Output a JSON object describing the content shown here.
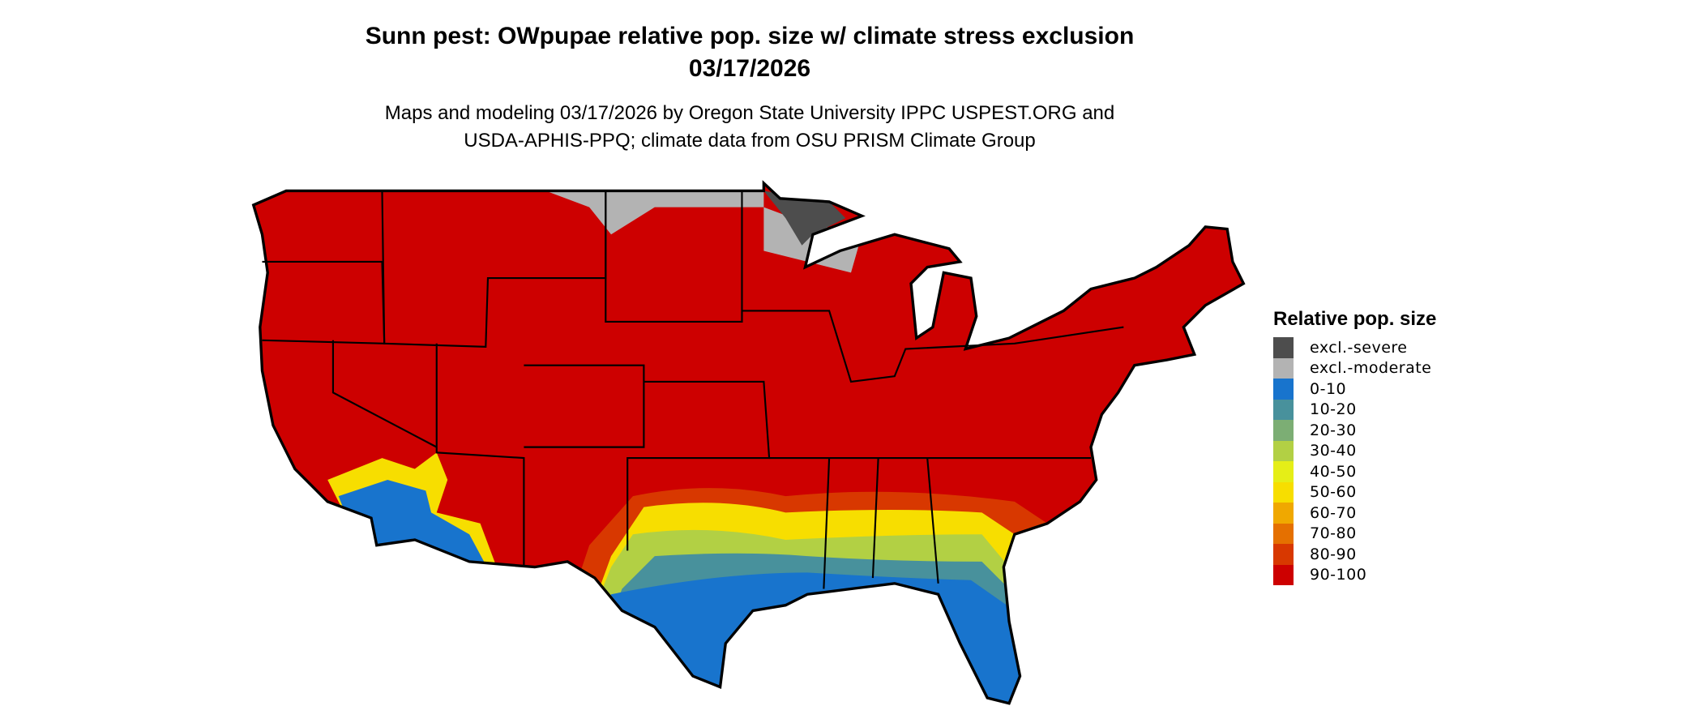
{
  "title_line1": "Sunn pest: OWpupae relative pop. size w/ climate stress exclusion",
  "title_line2": "03/17/2026",
  "subtitle_line1": "Maps and modeling 03/17/2026 by Oregon State University IPPC USPEST.ORG and",
  "subtitle_line2": "USDA-APHIS-PPQ; climate data from OSU PRISM Climate Group",
  "legend": {
    "title": "Relative pop. size",
    "items": [
      {
        "label": "excl.-severe",
        "color": "#4d4d4d"
      },
      {
        "label": "excl.-moderate",
        "color": "#b3b3b3"
      },
      {
        "label": "0-10",
        "color": "#1874cd"
      },
      {
        "label": "10-20",
        "color": "#48919c"
      },
      {
        "label": "20-30",
        "color": "#7cae74"
      },
      {
        "label": "30-40",
        "color": "#b2d044"
      },
      {
        "label": "40-50",
        "color": "#e5ee17"
      },
      {
        "label": "50-60",
        "color": "#f7de00"
      },
      {
        "label": "60-70",
        "color": "#f0a800"
      },
      {
        "label": "70-80",
        "color": "#e57000"
      },
      {
        "label": "80-90",
        "color": "#d83800"
      },
      {
        "label": "90-100",
        "color": "#cd0000"
      }
    ]
  }
}
